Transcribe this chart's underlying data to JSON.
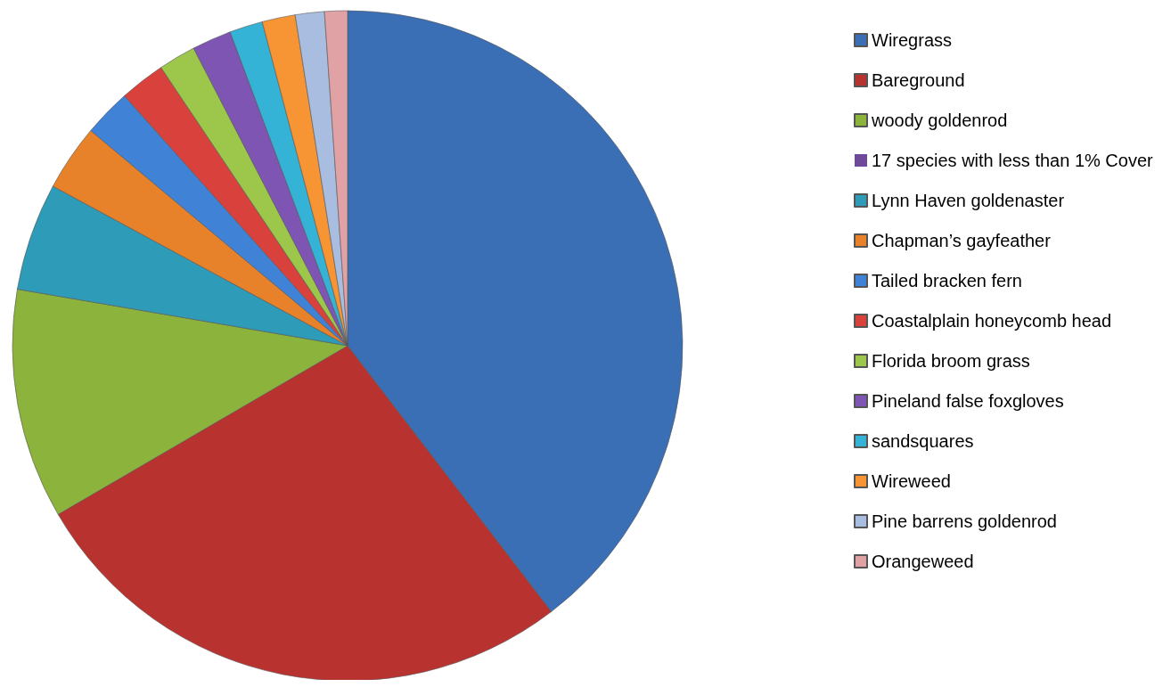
{
  "chart_data": {
    "type": "pie",
    "categories": [
      "Wiregrass",
      "Bareground",
      "woody goldenrod",
      "17 species with less than 1% Cover",
      "Lynn Haven goldenaster",
      "Chapman’s gayfeather",
      "Tailed bracken fern",
      "Coastalplain honeycomb head",
      "Florida broom grass",
      "Pineland false foxgloves",
      "sandsquares",
      "Wireweed",
      "Pine barrens goldenrod",
      "Orangeweed"
    ],
    "values": [
      39.6,
      27.0,
      11.1,
      0,
      5.2,
      3.2,
      2.3,
      2.2,
      1.8,
      1.9,
      1.6,
      1.6,
      1.4,
      1.1
    ],
    "colors": [
      "#3a6fb5",
      "#b8332f",
      "#8cb43c",
      "#6f4a9c",
      "#2e9bb8",
      "#e8822a",
      "#3f82d6",
      "#d9413c",
      "#9cc74a",
      "#7e55b3",
      "#35b3d6",
      "#f79433",
      "#a9bde0",
      "#e0a2a4"
    ],
    "legend": "right"
  }
}
